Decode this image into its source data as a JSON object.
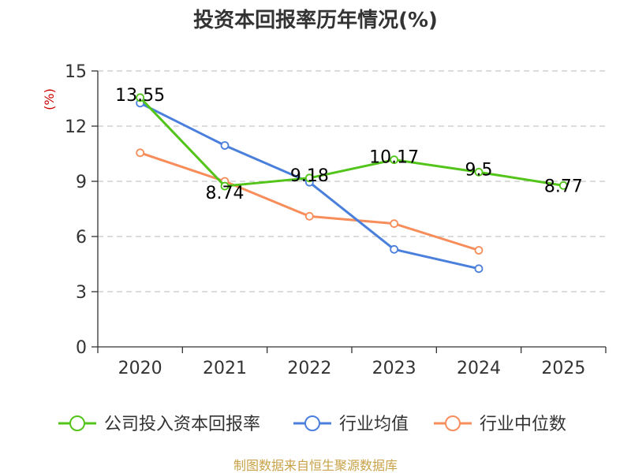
{
  "colors": {
    "company": "#52c41a",
    "industry_avg": "#4a7fdc",
    "industry_median": "#f78d5a",
    "grid": "#c8c8c8",
    "axis": "#333333",
    "unit": "#cc0000",
    "source": "#c8a248"
  },
  "source_text": "制图数据来自恒生聚源数据库",
  "chart_data": {
    "type": "line",
    "title": "投资本回报率历年情况(%)",
    "ylabel": "(%)",
    "xlabel": "",
    "categories": [
      "2020",
      "2021",
      "2022",
      "2023",
      "2024",
      "2025"
    ],
    "ylim": [
      0,
      15
    ],
    "yticks": [
      0,
      3,
      6,
      9,
      12,
      15
    ],
    "grid": true,
    "legend_position": "bottom",
    "series": [
      {
        "key": "company",
        "name": "公司投入资本回报率",
        "values": [
          13.55,
          8.74,
          9.18,
          10.17,
          9.5,
          8.77
        ],
        "labels": [
          "13.55",
          "8.74",
          "9.18",
          "10.17",
          "9.5",
          "8.77"
        ]
      },
      {
        "key": "industry_avg",
        "name": "行业均值",
        "values": [
          13.25,
          10.95,
          8.95,
          5.3,
          4.25,
          null
        ]
      },
      {
        "key": "industry_median",
        "name": "行业中位数",
        "values": [
          10.55,
          9.0,
          7.1,
          6.7,
          5.25,
          null
        ]
      }
    ]
  }
}
